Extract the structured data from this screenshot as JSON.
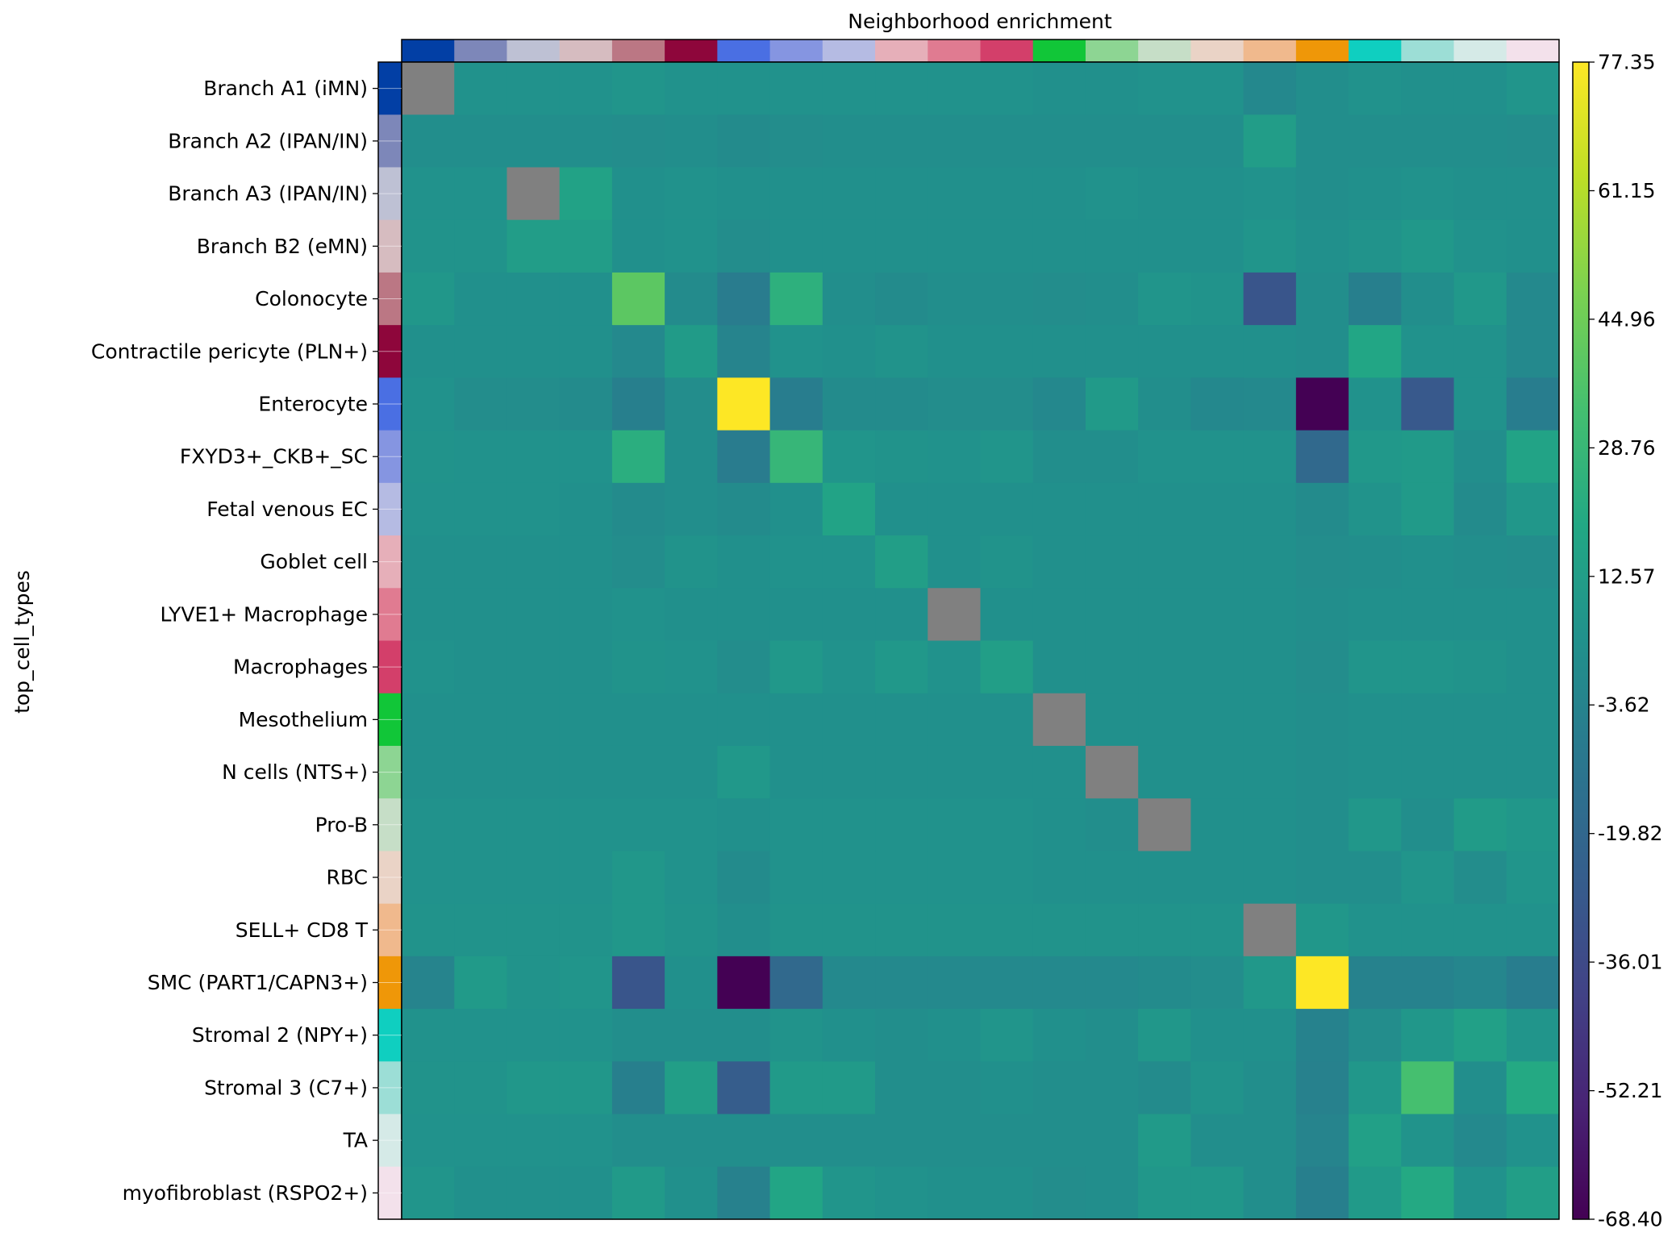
{
  "chart_data": {
    "type": "heatmap",
    "title": "Neighborhood enrichment",
    "ylabel": "top_cell_types",
    "categories": [
      "Branch A1 (iMN)",
      "Branch A2 (IPAN/IN)",
      "Branch A3 (IPAN/IN)",
      "Branch B2 (eMN)",
      "Colonocyte",
      "Contractile pericyte (PLN+)",
      "Enterocyte",
      "FXYD3+_CKB+_SC",
      "Fetal venous EC",
      "Goblet cell",
      "LYVE1+ Macrophage",
      "Macrophages",
      "Mesothelium",
      "N cells (NTS+)",
      "Pro-B",
      "RBC",
      "SELL+ CD8 T",
      "SMC (PART1/CAPN3+)",
      "Stromal 2 (NPY+)",
      "Stromal 3 (C7+)",
      "TA",
      "myofibroblast (RSPO2+)"
    ],
    "category_colors": [
      "#023fa5",
      "#7d87b9",
      "#bec1d4",
      "#d6bcc0",
      "#bb7784",
      "#8e063b",
      "#4a6fe3",
      "#8595e1",
      "#b5bbe3",
      "#e6afb9",
      "#e07b91",
      "#d33f6a",
      "#11c638",
      "#8dd593",
      "#c6dec7",
      "#ead3c6",
      "#f0b98d",
      "#ef9708",
      "#0fcfc0",
      "#9cded6",
      "#d5eae7",
      "#f3e1eb"
    ],
    "colorbar": {
      "min": -68.4,
      "max": 77.35,
      "ticks": [
        "77.35",
        "61.15",
        "44.96",
        "28.76",
        "12.57",
        "-3.62",
        "-19.82",
        "-36.01",
        "-52.21",
        "-68.40"
      ],
      "colormap": "viridis"
    },
    "nan_color": "#808080",
    "values": [
      [
        null,
        5,
        5,
        5,
        7,
        5,
        5,
        5,
        5,
        5,
        5,
        5,
        4,
        4,
        5,
        5,
        -1,
        3,
        5,
        4,
        4,
        7
      ],
      [
        3,
        3,
        3,
        3,
        2,
        3,
        1,
        2,
        3,
        3,
        3,
        3,
        3,
        3,
        3,
        3,
        12,
        3,
        3,
        3,
        3,
        2
      ],
      [
        5,
        5,
        null,
        15,
        4,
        5,
        4,
        4,
        4,
        4,
        4,
        4,
        4,
        5,
        4,
        4,
        5,
        3,
        4,
        5,
        4,
        4
      ],
      [
        6,
        6,
        12,
        12,
        4,
        5,
        2,
        4,
        4,
        4,
        4,
        4,
        4,
        4,
        4,
        4,
        7,
        4,
        6,
        9,
        5,
        4
      ],
      [
        8,
        4,
        4,
        4,
        40,
        1,
        -8,
        24,
        3,
        1,
        3,
        3,
        2,
        3,
        7,
        6,
        -30,
        3,
        -6,
        3,
        9,
        0
      ],
      [
        4,
        4,
        4,
        4,
        0,
        11,
        -3,
        5,
        4,
        6,
        4,
        4,
        4,
        4,
        4,
        4,
        4,
        3,
        18,
        5,
        5,
        0
      ],
      [
        5,
        2,
        2,
        1,
        -6,
        2,
        77.35,
        -7,
        1,
        1,
        2,
        2,
        -1,
        10,
        3,
        -1,
        0,
        -68.4,
        5,
        -28,
        5,
        -7
      ],
      [
        6,
        5,
        5,
        5,
        23,
        3,
        -8,
        28,
        7,
        6,
        5,
        7,
        3,
        3,
        5,
        5,
        5,
        -19,
        9,
        10,
        3,
        16
      ],
      [
        5,
        5,
        5,
        4,
        1,
        3,
        1,
        4,
        16,
        4,
        4,
        4,
        4,
        4,
        4,
        4,
        4,
        1,
        6,
        10,
        1,
        8
      ],
      [
        4,
        4,
        4,
        4,
        2,
        6,
        4,
        5,
        5,
        13,
        4,
        6,
        4,
        4,
        4,
        4,
        4,
        2,
        3,
        4,
        3,
        2
      ],
      [
        4,
        4,
        4,
        4,
        5,
        4,
        4,
        4,
        4,
        4,
        null,
        4,
        4,
        4,
        4,
        4,
        4,
        3,
        4,
        4,
        4,
        4
      ],
      [
        5,
        4,
        4,
        4,
        6,
        5,
        2,
        9,
        5,
        9,
        5,
        13,
        4,
        4,
        4,
        4,
        4,
        2,
        7,
        7,
        6,
        4
      ],
      [
        4,
        4,
        4,
        4,
        4,
        4,
        4,
        4,
        4,
        4,
        4,
        4,
        null,
        4,
        4,
        4,
        4,
        3,
        4,
        4,
        4,
        4
      ],
      [
        4,
        4,
        4,
        4,
        4,
        4,
        9,
        4,
        4,
        4,
        4,
        4,
        4,
        null,
        4,
        4,
        4,
        3,
        4,
        4,
        4,
        4
      ],
      [
        5,
        5,
        5,
        5,
        5,
        5,
        4,
        5,
        5,
        5,
        5,
        5,
        4,
        3,
        null,
        4,
        4,
        3,
        8,
        3,
        11,
        8
      ],
      [
        5,
        5,
        5,
        5,
        8,
        5,
        1,
        5,
        5,
        5,
        5,
        5,
        4,
        4,
        4,
        4,
        4,
        3,
        3,
        7,
        2,
        7
      ],
      [
        6,
        6,
        6,
        6,
        8,
        6,
        3,
        6,
        6,
        6,
        6,
        6,
        6,
        6,
        6,
        6,
        null,
        8,
        5,
        5,
        5,
        5
      ],
      [
        -3,
        10,
        6,
        7,
        -30,
        4,
        -68.4,
        -19,
        0,
        0,
        0,
        0,
        0,
        0,
        1,
        2,
        9,
        77.35,
        -4,
        -4,
        -2,
        -7
      ],
      [
        5,
        5,
        5,
        5,
        3,
        3,
        3,
        6,
        4,
        3,
        4,
        7,
        4,
        3,
        8,
        4,
        4,
        -4,
        2,
        8,
        14,
        7
      ],
      [
        6,
        6,
        8,
        8,
        -6,
        13,
        -26,
        10,
        10,
        3,
        3,
        4,
        3,
        3,
        1,
        6,
        3,
        -5,
        8,
        34,
        3,
        20
      ],
      [
        5,
        5,
        5,
        5,
        3,
        3,
        3,
        3,
        3,
        3,
        3,
        3,
        3,
        3,
        10,
        3,
        3,
        -3,
        14,
        6,
        0,
        5
      ],
      [
        7,
        4,
        4,
        4,
        10,
        4,
        -5,
        17,
        7,
        5,
        4,
        4,
        2,
        3,
        8,
        8,
        3,
        -6,
        10,
        20,
        5,
        13
      ]
    ]
  }
}
